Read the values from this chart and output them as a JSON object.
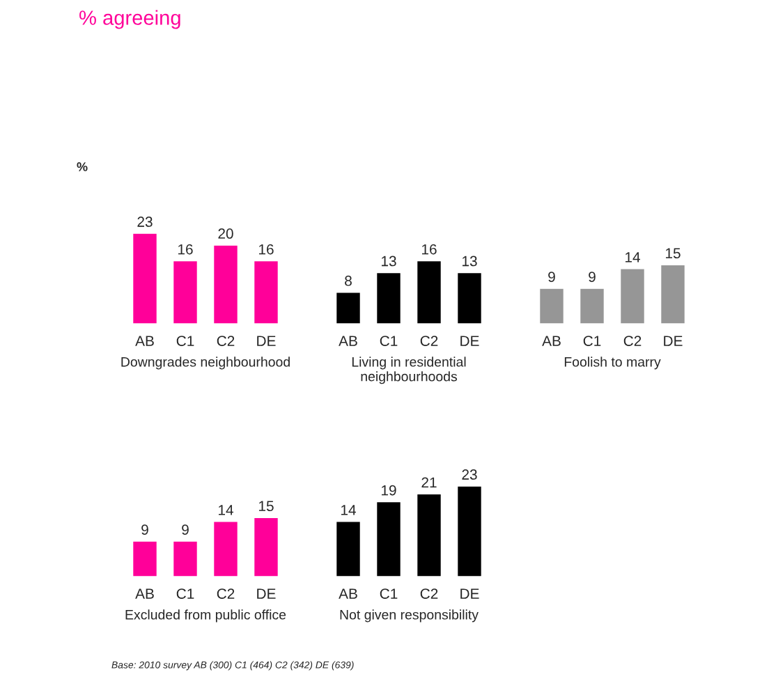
{
  "chart_data": [
    {
      "type": "bar",
      "title": "% agreeing",
      "subtitle": "%",
      "categories": [
        "AB",
        "C1",
        "C2",
        "DE"
      ],
      "values": [
        23,
        16,
        20,
        16
      ],
      "color": "#ff0099",
      "xlabel": "Downgrades neighbourhood",
      "data_labels": true,
      "annotations": [
        "Base: 2010 survey AB (300) C1 (464) C2 (342) DE (639)"
      ]
    },
    {
      "type": "bar",
      "categories": [
        "AB",
        "C1",
        "C2",
        "DE"
      ],
      "values": [
        8,
        13,
        16,
        13
      ],
      "color": "#000000",
      "xlabel": "Living in residential neighbourhoods",
      "data_labels": true
    },
    {
      "type": "bar",
      "categories": [
        "AB",
        "C1",
        "C2",
        "DE"
      ],
      "values": [
        9,
        9,
        14,
        15
      ],
      "color": "#969696",
      "xlabel": "Foolish to marry",
      "data_labels": true
    },
    {
      "type": "bar",
      "categories": [
        "AB",
        "C1",
        "C2",
        "DE"
      ],
      "values": [
        9,
        9,
        14,
        15
      ],
      "color": "#ff0099",
      "xlabel": "Excluded from public office",
      "data_labels": true
    },
    {
      "type": "bar",
      "categories": [
        "AB",
        "C1",
        "C2",
        "DE"
      ],
      "values": [
        14,
        19,
        21,
        23
      ],
      "color": "#000000",
      "xlabel": "Not given responsibility",
      "data_labels": true
    }
  ]
}
